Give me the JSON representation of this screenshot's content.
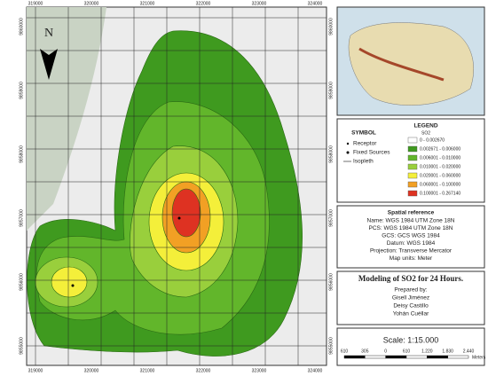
{
  "map": {
    "north": "N",
    "x_labels": [
      "319000",
      "320000",
      "321000",
      "322000",
      "323000",
      "324000"
    ],
    "y_labels": [
      "9860000",
      "9859000",
      "9858000",
      "9857000",
      "9856000",
      "9855000"
    ]
  },
  "legend": {
    "title": "LEGEND",
    "subtitle": "SO2",
    "items": [
      {
        "label": "0 - 0.002670",
        "color": "#ffffff"
      },
      {
        "label": "0.002671 - 0.006000",
        "color": "#3f9a1f"
      },
      {
        "label": "0.006001 - 0.010000",
        "color": "#62b62b"
      },
      {
        "label": "0.010001 - 0.020000",
        "color": "#99cf3c"
      },
      {
        "label": "0.020001 - 0.060000",
        "color": "#f4ef3a"
      },
      {
        "label": "0.060001 - 0.100000",
        "color": "#f2a024"
      },
      {
        "label": "0.100001 - 0.267140",
        "color": "#de3222"
      }
    ]
  },
  "symbol": {
    "title": "SYMBOL",
    "items": [
      "Receptor",
      "Fixed Sources",
      "Isopleth"
    ]
  },
  "spatial_reference": {
    "title": "Spatial reference",
    "lines": [
      "Name: WGS 1984 UTM Zone 18N",
      "PCS: WGS 1984 UTM Zone 18N",
      "GCS: GCS WGS 1984",
      "Datum: WGS 1984",
      "Projection: Transverse Mercator",
      "Map units: Meter"
    ]
  },
  "title_block": {
    "title": "Modeling of SO2 for 24 Hours.",
    "prepared": "Prepared by:",
    "authors": [
      "Gisell Jiménez",
      "Deisy Castillo",
      "Yohán Cuéllar"
    ]
  },
  "scale": {
    "text": "Scale: 1:15.000",
    "bar_labels": [
      "610",
      "305",
      "0",
      "610",
      "1.220",
      "1.830",
      "2.440"
    ],
    "unit": "Meters"
  }
}
